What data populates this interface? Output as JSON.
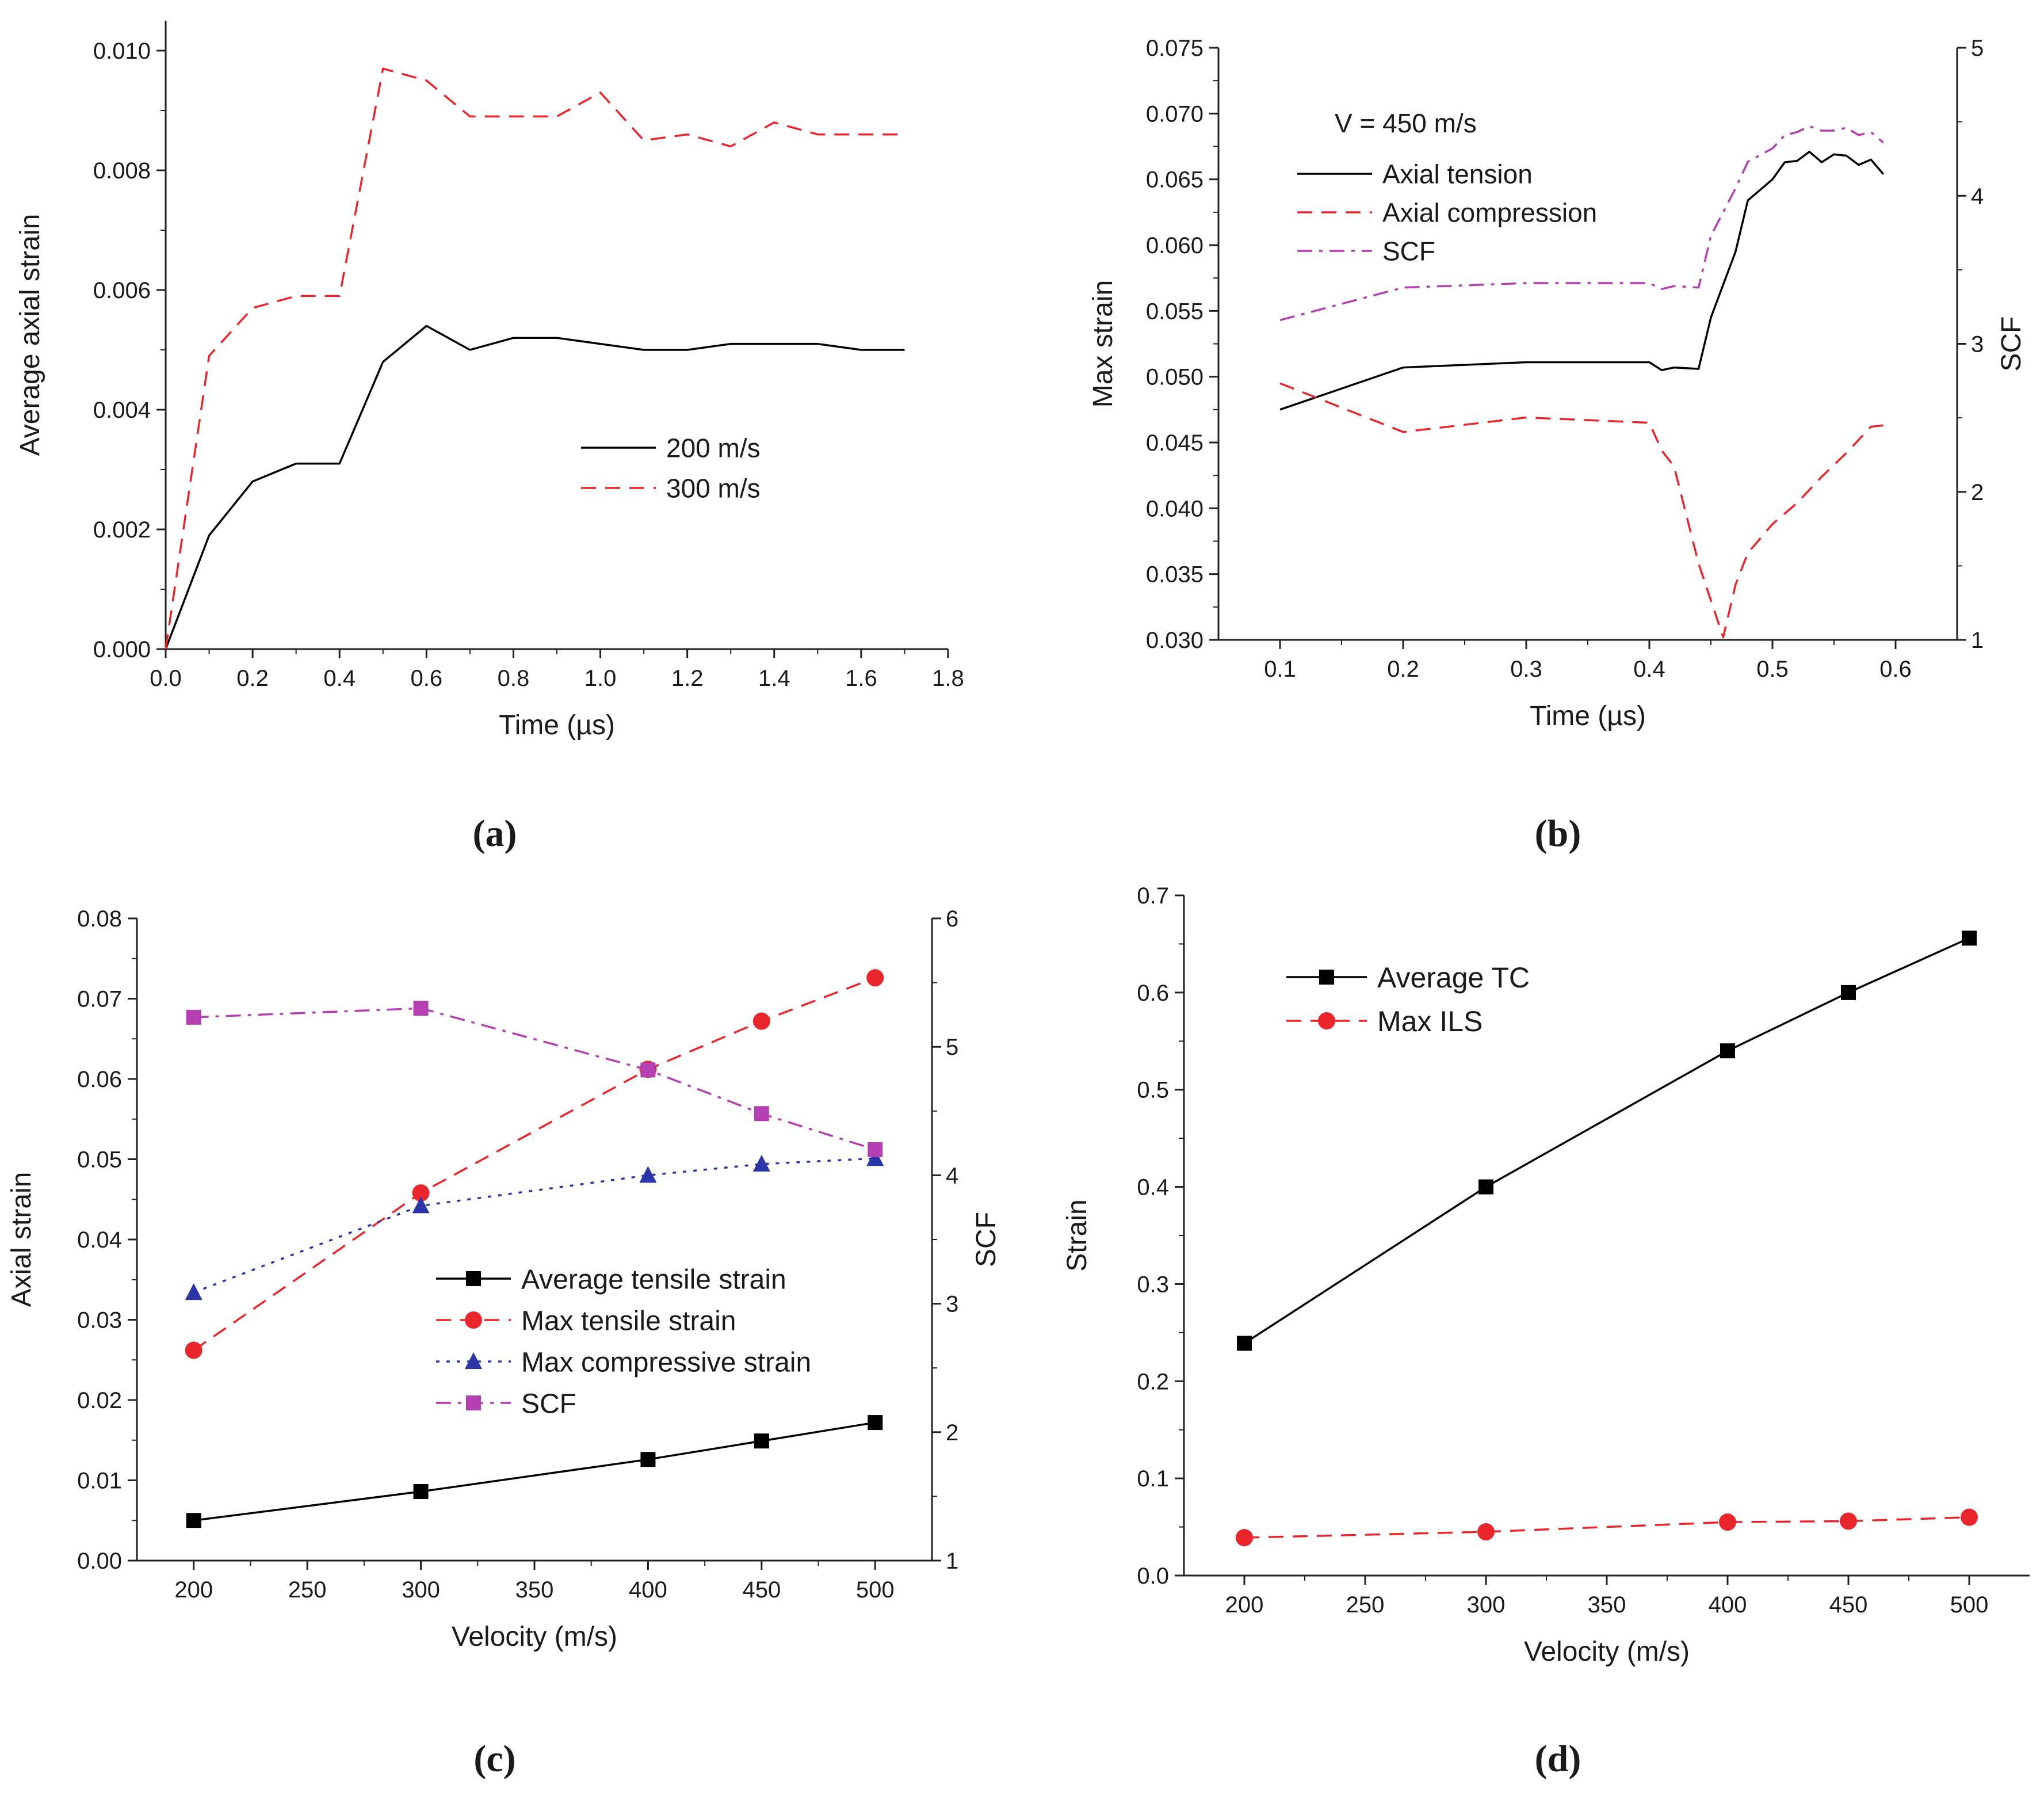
{
  "panels": [
    {
      "id": "a",
      "caption": "(a)",
      "chart_data": {
        "type": "line",
        "title": "",
        "xlabel": "Time (µs)",
        "ylabel": "Average axial strain",
        "xlim": [
          0,
          1.8
        ],
        "ylim": [
          0,
          0.0105
        ],
        "xticks": [
          "0.0",
          "0.2",
          "0.4",
          "0.6",
          "0.8",
          "1.0",
          "1.2",
          "1.4",
          "1.6",
          "1.8"
        ],
        "yticks": [
          "0.000",
          "0.002",
          "0.004",
          "0.006",
          "0.008",
          "0.010"
        ],
        "legend": "center-right",
        "series": [
          {
            "name": "200 m/s",
            "color": "#000000",
            "dash": "solid",
            "x": [
              0,
              0.1,
              0.2,
              0.3,
              0.4,
              0.5,
              0.6,
              0.7,
              0.8,
              0.9,
              1.0,
              1.1,
              1.2,
              1.3,
              1.4,
              1.5,
              1.6,
              1.7
            ],
            "y": [
              0,
              0.0019,
              0.0028,
              0.0031,
              0.0031,
              0.0048,
              0.0054,
              0.005,
              0.0052,
              0.0052,
              0.0051,
              0.005,
              0.005,
              0.0051,
              0.0051,
              0.0051,
              0.005,
              0.005
            ]
          },
          {
            "name": "300 m/s",
            "color": "#e8262b",
            "dash": "dashed",
            "x": [
              0,
              0.1,
              0.2,
              0.3,
              0.4,
              0.5,
              0.6,
              0.7,
              0.8,
              0.9,
              1.0,
              1.1,
              1.2,
              1.3,
              1.4,
              1.5,
              1.6,
              1.7
            ],
            "y": [
              0,
              0.0049,
              0.0057,
              0.0059,
              0.0059,
              0.0097,
              0.0095,
              0.0089,
              0.0089,
              0.0089,
              0.0093,
              0.0085,
              0.0086,
              0.0084,
              0.0088,
              0.0086,
              0.0086,
              0.0086
            ]
          }
        ]
      }
    },
    {
      "id": "b",
      "caption": "(b)",
      "chart_data": {
        "type": "line",
        "title": "",
        "xlabel": "Time (µs)",
        "ylabel": "Max strain",
        "y2label": "SCF",
        "xlim": [
          0.05,
          0.65
        ],
        "ylim": [
          0.03,
          0.075
        ],
        "y2lim": [
          1,
          5
        ],
        "xticks": [
          "0.1",
          "0.2",
          "0.3",
          "0.4",
          "0.5",
          "0.6"
        ],
        "yticks": [
          "0.030",
          "0.035",
          "0.040",
          "0.045",
          "0.050",
          "0.055",
          "0.060",
          "0.065",
          "0.070",
          "0.075"
        ],
        "y2ticks": [
          "1",
          "2",
          "3",
          "4",
          "5"
        ],
        "legend": "top-left",
        "annotation": "V = 450 m/s",
        "series": [
          {
            "name": "Axial tension",
            "color": "#000000",
            "dash": "solid",
            "axis": "left",
            "x": [
              0.1,
              0.2,
              0.3,
              0.4,
              0.41,
              0.42,
              0.44,
              0.45,
              0.47,
              0.48,
              0.5,
              0.51,
              0.52,
              0.53,
              0.54,
              0.55,
              0.56,
              0.57,
              0.58,
              0.59
            ],
            "y": [
              0.0475,
              0.0507,
              0.0511,
              0.0511,
              0.0505,
              0.0507,
              0.0506,
              0.0545,
              0.0595,
              0.0634,
              0.065,
              0.0663,
              0.0664,
              0.0671,
              0.0663,
              0.0669,
              0.0668,
              0.0661,
              0.0665,
              0.0654
            ]
          },
          {
            "name": "Axial compression",
            "color": "#e8262b",
            "dash": "dashed",
            "axis": "left",
            "x": [
              0.1,
              0.2,
              0.3,
              0.4,
              0.41,
              0.42,
              0.44,
              0.46,
              0.47,
              0.48,
              0.5,
              0.52,
              0.54,
              0.56,
              0.58,
              0.59
            ],
            "y": [
              0.0495,
              0.0458,
              0.0469,
              0.0465,
              0.0444,
              0.0432,
              0.0358,
              0.0302,
              0.0342,
              0.0366,
              0.0388,
              0.0404,
              0.0424,
              0.0442,
              0.0462,
              0.0463
            ]
          },
          {
            "name": "SCF",
            "color": "#b43fb2",
            "dash": "dashdot",
            "axis": "right",
            "x": [
              0.1,
              0.2,
              0.3,
              0.4,
              0.41,
              0.42,
              0.44,
              0.45,
              0.47,
              0.48,
              0.5,
              0.51,
              0.52,
              0.53,
              0.54,
              0.55,
              0.56,
              0.57,
              0.58,
              0.59
            ],
            "y": [
              3.16,
              3.38,
              3.41,
              3.41,
              3.37,
              3.39,
              3.38,
              3.73,
              4.05,
              4.23,
              4.32,
              4.41,
              4.43,
              4.47,
              4.44,
              4.44,
              4.46,
              4.41,
              4.43,
              4.36
            ]
          }
        ]
      }
    },
    {
      "id": "c",
      "caption": "(c)",
      "chart_data": {
        "type": "line",
        "title": "",
        "xlabel": "Velocity (m/s)",
        "ylabel": "Axial strain",
        "y2label": "SCF",
        "xlim": [
          175,
          525
        ],
        "ylim": [
          0,
          0.08
        ],
        "y2lim": [
          1,
          6
        ],
        "xticks": [
          "200",
          "250",
          "300",
          "350",
          "400",
          "450",
          "500"
        ],
        "yticks": [
          "0.00",
          "0.01",
          "0.02",
          "0.03",
          "0.04",
          "0.05",
          "0.06",
          "0.07",
          "0.08"
        ],
        "y2ticks": [
          "1",
          "2",
          "3",
          "4",
          "5",
          "6"
        ],
        "legend": "center-right",
        "series": [
          {
            "name": "Average tensile strain",
            "color": "#000000",
            "dash": "solid",
            "marker": "square",
            "axis": "left",
            "x": [
              200,
              300,
              400,
              450,
              500
            ],
            "y": [
              0.005,
              0.0086,
              0.0126,
              0.0149,
              0.0172
            ]
          },
          {
            "name": "Max tensile strain",
            "color": "#e8262b",
            "dash": "dashed",
            "marker": "circle",
            "axis": "left",
            "x": [
              200,
              300,
              400,
              450,
              500
            ],
            "y": [
              0.0262,
              0.0458,
              0.0612,
              0.0672,
              0.0726
            ]
          },
          {
            "name": "Max compressive strain",
            "color": "#2b35a8",
            "dash": "dotted",
            "marker": "triangle",
            "axis": "left",
            "x": [
              200,
              300,
              400,
              450,
              500
            ],
            "y": [
              0.0334,
              0.0442,
              0.048,
              0.0494,
              0.0501
            ]
          },
          {
            "name": "SCF",
            "color": "#b43fb2",
            "dash": "dashdot",
            "marker": "square",
            "axis": "right",
            "x": [
              200,
              300,
              400,
              450,
              500
            ],
            "y": [
              5.23,
              5.3,
              4.82,
              4.48,
              4.2
            ]
          }
        ]
      }
    },
    {
      "id": "d",
      "caption": "(d)",
      "chart_data": {
        "type": "line",
        "title": "",
        "xlabel": "Velocity (m/s)",
        "ylabel": "Strain",
        "xlim": [
          175,
          525
        ],
        "ylim": [
          0,
          0.7
        ],
        "xticks": [
          "200",
          "250",
          "300",
          "350",
          "400",
          "450",
          "500"
        ],
        "yticks": [
          "0.0",
          "0.1",
          "0.2",
          "0.3",
          "0.4",
          "0.5",
          "0.6",
          "0.7"
        ],
        "legend": "top-left",
        "series": [
          {
            "name": "Average TC",
            "color": "#000000",
            "dash": "solid",
            "marker": "square",
            "x": [
              200,
              300,
              400,
              450,
              500
            ],
            "y": [
              0.239,
              0.4,
              0.54,
              0.6,
              0.656
            ]
          },
          {
            "name": "Max ILS",
            "color": "#e8262b",
            "dash": "dashed",
            "marker": "circle",
            "x": [
              200,
              300,
              400,
              450,
              500
            ],
            "y": [
              0.039,
              0.045,
              0.055,
              0.056,
              0.06
            ]
          }
        ]
      }
    }
  ]
}
